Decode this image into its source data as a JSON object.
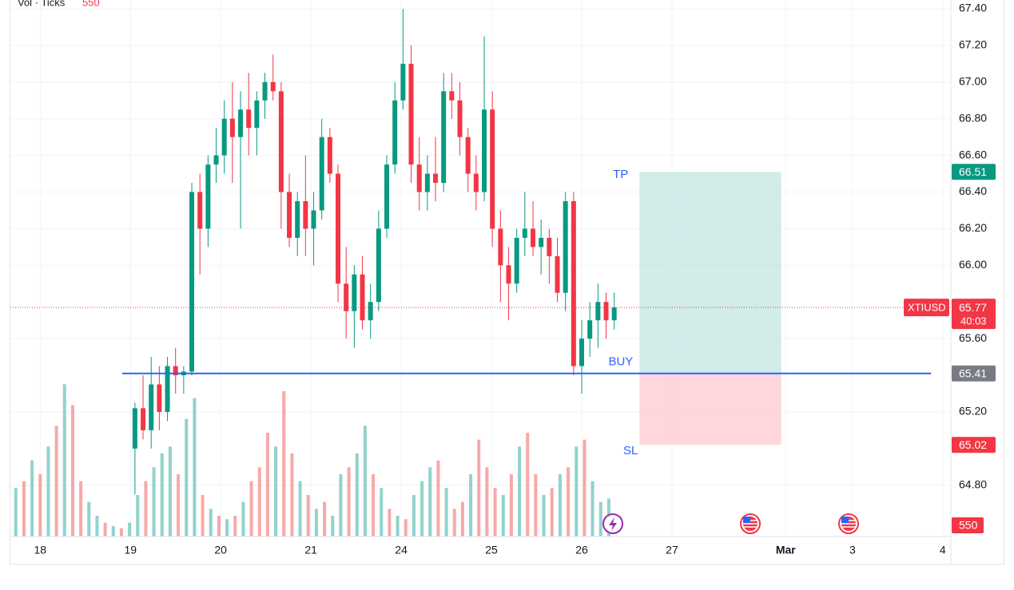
{
  "chart_data": {
    "type": "candlestick",
    "volume_title": "Vol · Ticks",
    "symbol": "XTIUSD",
    "countdown": "40:03",
    "last_price": 65.77,
    "up_color": "#089981",
    "down_color": "#f23645",
    "grid": true,
    "xlim": [
      -0.33,
      10.09
    ],
    "ylim": [
      64.52,
      67.448
    ],
    "volume_lim": [
      0,
      3000
    ],
    "xticks": [
      {
        "value": 0,
        "label": "18"
      },
      {
        "value": 1,
        "label": "19"
      },
      {
        "value": 2,
        "label": "20"
      },
      {
        "value": 3,
        "label": "21"
      },
      {
        "value": 4,
        "label": "24"
      },
      {
        "value": 5,
        "label": "25"
      },
      {
        "value": 6,
        "label": "26"
      },
      {
        "value": 7,
        "label": "27"
      },
      {
        "value": 8.26,
        "label": "Mar"
      },
      {
        "value": 9,
        "label": "3"
      },
      {
        "value": 10,
        "label": "4"
      }
    ],
    "yticks": [
      {
        "value": 64.8,
        "label": "64.80"
      },
      {
        "value": 65.2,
        "label": "65.20"
      },
      {
        "value": 65.6,
        "label": "65.60"
      },
      {
        "value": 66.0,
        "label": "66.00"
      },
      {
        "value": 66.2,
        "label": "66.20"
      },
      {
        "value": 66.4,
        "label": "66.40"
      },
      {
        "value": 66.6,
        "label": "66.60"
      },
      {
        "value": 66.8,
        "label": "66.80"
      },
      {
        "value": 67.0,
        "label": "67.00"
      },
      {
        "value": 67.2,
        "label": "67.20"
      },
      {
        "value": 67.4,
        "label": "67.40"
      }
    ],
    "x": [
      1.05,
      1.14,
      1.23,
      1.32,
      1.41,
      1.5,
      1.59,
      1.68,
      1.77,
      1.86,
      1.95,
      2.04,
      2.13,
      2.22,
      2.31,
      2.4,
      2.49,
      2.58,
      2.67,
      2.76,
      2.85,
      2.94,
      3.03,
      3.12,
      3.21,
      3.3,
      3.39,
      3.48,
      3.57,
      3.66,
      3.75,
      3.84,
      3.93,
      4.02,
      4.11,
      4.2,
      4.29,
      4.38,
      4.47,
      4.56,
      4.65,
      4.74,
      4.83,
      4.92,
      5.01,
      5.1,
      5.19,
      5.28,
      5.37,
      5.46,
      5.55,
      5.64,
      5.73,
      5.82,
      5.91,
      6.0,
      6.09,
      6.18,
      6.27,
      6.36
    ],
    "open": [
      65.0,
      65.22,
      65.1,
      65.35,
      65.2,
      65.45,
      65.4,
      65.42,
      66.4,
      66.2,
      66.55,
      66.6,
      66.8,
      66.7,
      66.85,
      66.75,
      66.9,
      67.0,
      66.95,
      66.4,
      66.15,
      66.35,
      66.2,
      66.3,
      66.7,
      66.5,
      65.9,
      65.75,
      65.95,
      65.7,
      65.8,
      66.2,
      66.55,
      66.9,
      67.1,
      66.55,
      66.4,
      66.5,
      66.45,
      66.95,
      66.9,
      66.7,
      66.5,
      66.4,
      66.85,
      66.2,
      66.0,
      65.9,
      66.15,
      66.2,
      66.1,
      66.15,
      66.05,
      65.85,
      66.35,
      65.45,
      65.6,
      65.7,
      65.8,
      65.7
    ],
    "high": [
      65.25,
      65.4,
      65.5,
      65.45,
      65.5,
      65.55,
      65.45,
      66.45,
      66.5,
      66.6,
      66.75,
      66.9,
      67.0,
      66.95,
      67.05,
      66.95,
      67.05,
      67.15,
      67.0,
      66.5,
      66.4,
      66.6,
      66.4,
      66.8,
      66.75,
      66.55,
      66.1,
      66.0,
      66.05,
      65.9,
      66.3,
      66.6,
      67.0,
      67.4,
      67.2,
      66.7,
      66.6,
      66.7,
      67.05,
      67.05,
      67.0,
      66.75,
      66.6,
      67.25,
      66.95,
      66.3,
      66.1,
      66.2,
      66.4,
      66.35,
      66.25,
      66.2,
      66.15,
      66.4,
      66.4,
      65.7,
      65.8,
      65.9,
      65.85,
      65.85
    ],
    "low": [
      64.75,
      65.05,
      65.0,
      65.1,
      65.15,
      65.3,
      65.3,
      65.4,
      65.95,
      66.1,
      66.45,
      66.5,
      66.45,
      66.2,
      66.6,
      66.6,
      66.8,
      66.9,
      66.2,
      66.1,
      66.05,
      66.05,
      66.0,
      66.25,
      66.45,
      65.8,
      65.6,
      65.55,
      65.65,
      65.6,
      65.75,
      66.15,
      66.5,
      66.85,
      66.45,
      66.3,
      66.3,
      66.35,
      66.4,
      66.8,
      66.6,
      66.4,
      66.3,
      66.35,
      66.1,
      65.8,
      65.7,
      65.85,
      66.05,
      66.05,
      65.95,
      65.9,
      65.8,
      65.75,
      65.4,
      65.3,
      65.5,
      65.55,
      65.6,
      65.65
    ],
    "close": [
      65.22,
      65.1,
      65.35,
      65.2,
      65.45,
      65.4,
      65.42,
      66.4,
      66.2,
      66.55,
      66.6,
      66.8,
      66.7,
      66.85,
      66.75,
      66.9,
      67.0,
      66.95,
      66.4,
      66.15,
      66.35,
      66.2,
      66.3,
      66.7,
      66.5,
      65.9,
      65.75,
      65.95,
      65.7,
      65.8,
      66.2,
      66.55,
      66.9,
      67.1,
      66.55,
      66.4,
      66.5,
      66.45,
      66.95,
      66.9,
      66.7,
      66.5,
      66.4,
      66.85,
      66.2,
      66.0,
      65.9,
      66.15,
      66.2,
      66.1,
      66.15,
      66.05,
      65.85,
      66.35,
      65.45,
      65.6,
      65.7,
      65.8,
      65.7,
      65.77
    ],
    "volume": {
      "x": [
        -0.27,
        -0.18,
        -0.09,
        0,
        0.09,
        0.18,
        0.27,
        0.36,
        0.45,
        0.54,
        0.63,
        0.72,
        0.81,
        0.9,
        0.99,
        1.08,
        1.17,
        1.26,
        1.35,
        1.44,
        1.53,
        1.62,
        1.71,
        1.8,
        1.89,
        1.98,
        2.07,
        2.16,
        2.25,
        2.34,
        2.43,
        2.52,
        2.61,
        2.7,
        2.79,
        2.88,
        2.97,
        3.06,
        3.15,
        3.24,
        3.33,
        3.42,
        3.51,
        3.6,
        3.69,
        3.78,
        3.87,
        3.96,
        4.05,
        4.14,
        4.23,
        4.32,
        4.41,
        4.5,
        4.59,
        4.68,
        4.77,
        4.86,
        4.95,
        5.04,
        5.13,
        5.22,
        5.31,
        5.4,
        5.49,
        5.58,
        5.67,
        5.76,
        5.85,
        5.94,
        6.03,
        6.12,
        6.21,
        6.3
      ],
      "values": [
        700,
        800,
        1100,
        900,
        1300,
        1600,
        2200,
        1900,
        800,
        500,
        300,
        200,
        150,
        120,
        200,
        600,
        800,
        1000,
        1200,
        1300,
        900,
        1700,
        2000,
        600,
        400,
        300,
        250,
        300,
        500,
        800,
        1000,
        1500,
        1300,
        2100,
        1200,
        800,
        600,
        400,
        500,
        300,
        900,
        1000,
        1200,
        1600,
        900,
        700,
        400,
        300,
        250,
        600,
        800,
        1000,
        1100,
        700,
        400,
        500,
        900,
        1400,
        1000,
        700,
        600,
        900,
        1300,
        1500,
        900,
        600,
        700,
        900,
        1000,
        1300,
        1400,
        800,
        500,
        550
      ],
      "colors": [
        "#26a69a80",
        "#ef535080",
        "#26a69a80",
        "#ef535080",
        "#26a69a80",
        "#ef535080",
        "#26a69a80",
        "#ef535080",
        "#ef535080",
        "#26a69a80",
        "#26a69a80",
        "#ef535080",
        "#26a69a80",
        "#ef535080",
        "#26a69a80",
        "#26a69a80",
        "#ef535080",
        "#26a69a80",
        "#26a69a80",
        "#26a69a80",
        "#ef535080",
        "#26a69a80",
        "#26a69a80",
        "#ef535080",
        "#26a69a80",
        "#ef535080",
        "#26a69a80",
        "#ef535080",
        "#26a69a80",
        "#ef535080",
        "#ef535080",
        "#ef535080",
        "#26a69a80",
        "#ef535080",
        "#ef535080",
        "#26a69a80",
        "#ef535080",
        "#26a69a80",
        "#ef535080",
        "#26a69a80",
        "#26a69a80",
        "#ef535080",
        "#26a69a80",
        "#26a69a80",
        "#ef535080",
        "#26a69a80",
        "#ef535080",
        "#26a69a80",
        "#ef535080",
        "#26a69a80",
        "#26a69a80",
        "#26a69a80",
        "#ef535080",
        "#26a69a80",
        "#ef535080",
        "#ef535080",
        "#26a69a80",
        "#ef535080",
        "#ef535080",
        "#ef535080",
        "#26a69a80",
        "#ef535080",
        "#26a69a80",
        "#ef535080",
        "#ef535080",
        "#26a69a80",
        "#ef535080",
        "#26a69a80",
        "#ef535080",
        "#26a69a80",
        "#ef535080",
        "#26a69a80",
        "#26a69a80",
        "#26a69a80"
      ]
    },
    "position": {
      "tp": 66.51,
      "entry": 65.41,
      "sl": 65.02,
      "tp_label": "TP",
      "entry_label": "BUY",
      "sl_label": "SL",
      "x_range": [
        6.64,
        8.21
      ],
      "line_xlim": [
        0.91,
        9.87
      ],
      "line_color": "#2962ff",
      "profit_color": "#b2dfdb",
      "loss_color": "#ffcdd2"
    }
  }
}
